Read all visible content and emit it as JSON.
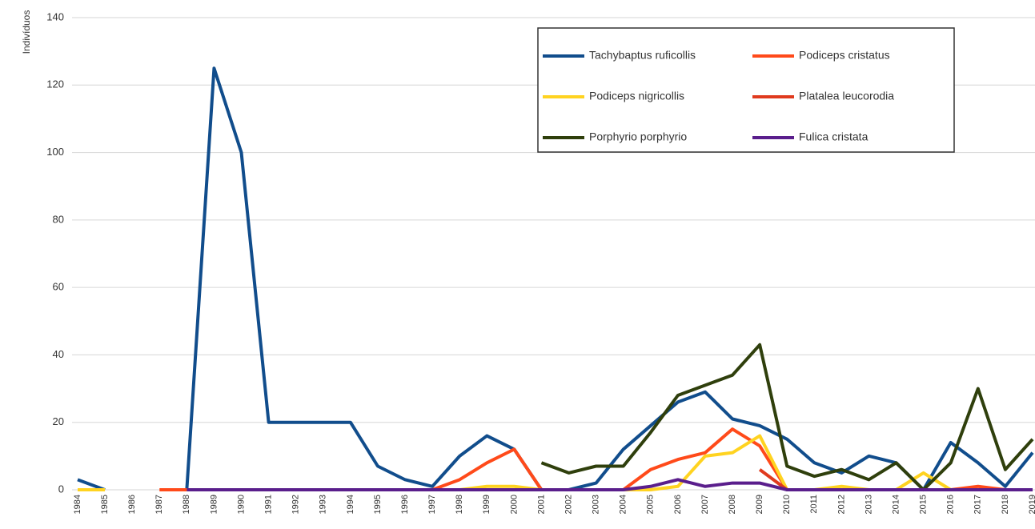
{
  "chart_data": {
    "type": "line",
    "y_label": "Indivíduos",
    "categories": [
      "1984",
      "1985",
      "1986",
      "1987",
      "1988",
      "1989",
      "1990",
      "1991",
      "1992",
      "1993",
      "1994",
      "1995",
      "1996",
      "1997",
      "1998",
      "1999",
      "2000",
      "2001",
      "2002",
      "2003",
      "2004",
      "2005",
      "2006",
      "2007",
      "2008",
      "2009",
      "2010",
      "2011",
      "2012",
      "2013",
      "2014",
      "2015",
      "2016",
      "2017",
      "2018",
      "2019"
    ],
    "ylim": [
      0,
      140
    ],
    "yticks": [
      0,
      20,
      40,
      60,
      80,
      100,
      120,
      140
    ],
    "grid": true,
    "legend": "top-right",
    "series": [
      {
        "name": "Tachybaptus ruficollis",
        "color": "#114d8c",
        "values": [
          3,
          0,
          null,
          null,
          0,
          125,
          100,
          20,
          20,
          20,
          20,
          7,
          3,
          1,
          10,
          16,
          12,
          0,
          0,
          2,
          12,
          19,
          26,
          29,
          21,
          19,
          15,
          8,
          5,
          10,
          8,
          0,
          14,
          8,
          1,
          11
        ]
      },
      {
        "name": "Podiceps cristatus",
        "color": "#ff4a1a",
        "values": [
          null,
          null,
          null,
          0,
          0,
          0,
          0,
          0,
          0,
          0,
          0,
          0,
          0,
          0,
          3,
          8,
          12,
          0,
          0,
          0,
          0,
          6,
          9,
          11,
          18,
          13,
          0,
          0,
          0,
          0,
          0,
          0,
          0,
          1,
          0,
          0
        ]
      },
      {
        "name": "Podiceps nigricollis",
        "color": "#ffd320",
        "values": [
          0,
          0,
          null,
          null,
          0,
          0,
          0,
          0,
          0,
          0,
          0,
          0,
          0,
          0,
          0,
          1,
          1,
          0,
          0,
          0,
          0,
          0,
          1,
          10,
          11,
          16,
          0,
          0,
          1,
          0,
          0,
          5,
          0,
          0,
          0,
          0
        ]
      },
      {
        "name": "Platalea leucorodia",
        "color": "#e03a1e",
        "values": [
          null,
          null,
          null,
          null,
          null,
          null,
          null,
          null,
          null,
          null,
          null,
          null,
          null,
          null,
          null,
          null,
          null,
          null,
          null,
          null,
          null,
          null,
          null,
          null,
          null,
          6,
          0,
          null,
          null,
          null,
          null,
          null,
          null,
          null,
          null,
          null
        ]
      },
      {
        "name": "Porphyrio porphyrio",
        "color": "#2f3f0c",
        "values": [
          null,
          null,
          null,
          null,
          null,
          null,
          null,
          null,
          null,
          null,
          null,
          null,
          null,
          null,
          null,
          null,
          null,
          8,
          5,
          7,
          7,
          17,
          28,
          31,
          34,
          43,
          7,
          4,
          6,
          3,
          8,
          0,
          8,
          30,
          6,
          15
        ]
      },
      {
        "name": "Fulica cristata",
        "color": "#5a1e8c",
        "values": [
          null,
          null,
          null,
          null,
          0,
          0,
          0,
          0,
          0,
          0,
          0,
          0,
          0,
          0,
          0,
          0,
          0,
          0,
          0,
          0,
          0,
          1,
          3,
          1,
          2,
          2,
          0,
          0,
          0,
          0,
          0,
          0,
          0,
          0,
          0,
          0
        ]
      }
    ]
  }
}
